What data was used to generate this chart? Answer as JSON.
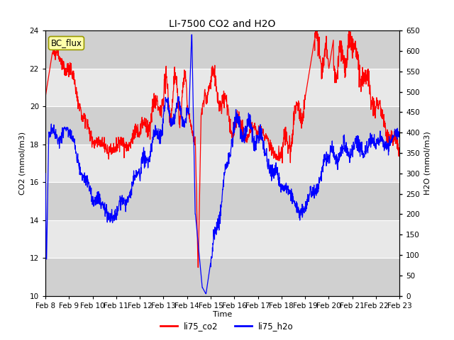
{
  "title": "LI-7500 CO2 and H2O",
  "xlabel": "Time",
  "ylabel_left": "CO2 (mmol/m3)",
  "ylabel_right": "H2O (mmol/m3)",
  "ylim_left": [
    10,
    24
  ],
  "ylim_right": [
    0,
    650
  ],
  "yticks_left": [
    10,
    12,
    14,
    16,
    18,
    20,
    22,
    24
  ],
  "yticks_right": [
    0,
    50,
    100,
    150,
    200,
    250,
    300,
    350,
    400,
    450,
    500,
    550,
    600,
    650
  ],
  "xtick_labels": [
    "Feb 8",
    "Feb 9",
    "Feb 10",
    "Feb 11",
    "Feb 12",
    "Feb 13",
    "Feb 14",
    "Feb 15",
    "Feb 16",
    "Feb 17",
    "Feb 18",
    "Feb 19",
    "Feb 20",
    "Feb 21",
    "Feb 22",
    "Feb 23"
  ],
  "legend_labels": [
    "li75_co2",
    "li75_h2o"
  ],
  "legend_colors": [
    "red",
    "blue"
  ],
  "annotation_text": "BC_flux",
  "bg_color_light": "#e8e8e8",
  "bg_color_dark": "#d0d0d0",
  "line_color_co2": "red",
  "line_color_h2o": "blue",
  "title_fontsize": 10,
  "axis_fontsize": 8,
  "tick_fontsize": 7.5
}
